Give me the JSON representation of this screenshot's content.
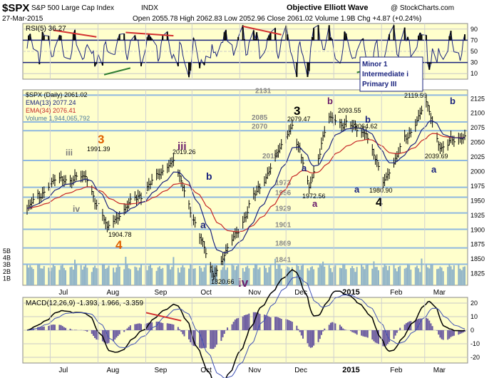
{
  "header": {
    "symbol": "$SPX",
    "name": "S&P 500 Large Cap Index",
    "exchange": "INDX",
    "title": "Objective Elliott Wave",
    "brand": "@ StockCharts.com",
    "date": "27-Mar-2015",
    "quote_line": "Open 2055.78  High 2062.83  Low 2052.96  Close 2061.02  Volume 1.9B  Chg +4.87 (+0.24%)"
  },
  "rsi_panel": {
    "label": "RSI(5) 36.27",
    "ticks": [
      "90",
      "70",
      "50",
      "30",
      "10"
    ],
    "box_lines": [
      "Minor 1",
      "Intermediate i",
      "Primary III"
    ]
  },
  "price_panel": {
    "legend": [
      {
        "text": "$SPX (Daily) 2061.02",
        "color": "#000000"
      },
      {
        "text": "EMA(13) 2077.24",
        "color": "#1a237e"
      },
      {
        "text": "EMA(34) 2076.41",
        "color": "#c62828"
      },
      {
        "text": "Volume 1,944,065,792",
        "color": "#4a7a9a"
      }
    ],
    "price_ticks": [
      "2125",
      "2100",
      "2075",
      "2050",
      "2025",
      "2000",
      "1975",
      "1950",
      "1925",
      "1900",
      "1875",
      "1850",
      "1825"
    ],
    "volume_ticks": [
      "5B",
      "4B",
      "3B",
      "2B",
      "1B"
    ],
    "level_labels": [
      "2131",
      "2085",
      "2070",
      "2019",
      "1973",
      "1956",
      "1929",
      "1901",
      "1869",
      "1841"
    ],
    "price_labels": [
      "1991.39",
      "2019.26",
      "1904.78",
      "2079.47",
      "2093.55",
      "1972.56",
      "2064.62",
      "1980.90",
      "2119.59",
      "2039.69",
      "1820.66"
    ],
    "wave_labels": [
      {
        "text": "iii",
        "color": "#7a7a7a"
      },
      {
        "text": "iv",
        "color": "#7a7a7a"
      },
      {
        "text": "3",
        "color": "#e06000"
      },
      {
        "text": "4",
        "color": "#e06000"
      },
      {
        "text": "iii",
        "color": "#6a1b6a"
      },
      {
        "text": "b",
        "color": "#1a237e"
      },
      {
        "text": "a",
        "color": "#1a237e"
      },
      {
        "text": "iv",
        "color": "#6a1b6a"
      },
      {
        "text": "3",
        "color": "#000000"
      },
      {
        "text": "b",
        "color": "#6a1b6a"
      },
      {
        "text": "a",
        "color": "#1a237e"
      },
      {
        "text": "a",
        "color": "#6a1b6a"
      },
      {
        "text": "b",
        "color": "#1a237e"
      },
      {
        "text": "a",
        "color": "#1a237e"
      },
      {
        "text": "4",
        "color": "#000000"
      },
      {
        "text": "b",
        "color": "#1a237e"
      },
      {
        "text": "a",
        "color": "#1a237e"
      }
    ]
  },
  "macd_panel": {
    "label": "MACD(12,26,9) -1.393, 1.966, -3.359",
    "ticks": [
      "20",
      "10",
      "0",
      "-10",
      "-20"
    ]
  },
  "x_axis": {
    "upper": [
      "Jul",
      "Aug",
      "Sep",
      "Oct",
      "Nov",
      "Dec",
      "2015",
      "Feb",
      "Mar"
    ],
    "lower": [
      "Jul",
      "Aug",
      "Sep",
      "Oct",
      "Nov",
      "Dec",
      "2015",
      "Feb",
      "Mar"
    ]
  },
  "colors": {
    "panel_bg": "#ffffcc",
    "grid": "#b8c8d8",
    "level_line": "#8fb8e0",
    "ema13": "#1a237e",
    "ema34": "#c62828",
    "volume": "#8fb3c8",
    "rsi_line": "#1a237e",
    "rsi_fill": "#000000",
    "trend_red": "#d32f2f",
    "trend_green": "#2e7d32"
  },
  "chart_data": {
    "type": "line",
    "title": "Objective Elliott Wave",
    "ylabel": "",
    "ylim": [
      1805,
      2140
    ],
    "x_range": [
      "2014-06-16",
      "2015-03-27"
    ],
    "labeled_points": [
      {
        "date": "2014-07-24",
        "value": 1991.39
      },
      {
        "date": "2014-08-07",
        "value": 1904.78
      },
      {
        "date": "2014-09-19",
        "value": 2019.26
      },
      {
        "date": "2014-10-15",
        "value": 1820.66
      },
      {
        "date": "2014-12-05",
        "value": 2079.47
      },
      {
        "date": "2014-12-16",
        "value": 1972.56
      },
      {
        "date": "2014-12-29",
        "value": 2093.55
      },
      {
        "date": "2015-01-22",
        "value": 2064.62
      },
      {
        "date": "2015-02-02",
        "value": 1980.9
      },
      {
        "date": "2015-03-02",
        "value": 2119.59
      },
      {
        "date": "2015-03-11",
        "value": 2039.69
      },
      {
        "date": "2015-03-27",
        "value": 2061.02
      }
    ],
    "levels": [
      2131,
      2085,
      2070,
      2019,
      1973,
      1956,
      1929,
      1901,
      1869,
      1841
    ],
    "ema13_last": 2077.24,
    "ema34_last": 2076.41,
    "rsi_last": 36.27,
    "macd_last": {
      "macd": -1.393,
      "signal": 1.966,
      "histogram": -3.359
    },
    "volume_last": 1944065792
  }
}
